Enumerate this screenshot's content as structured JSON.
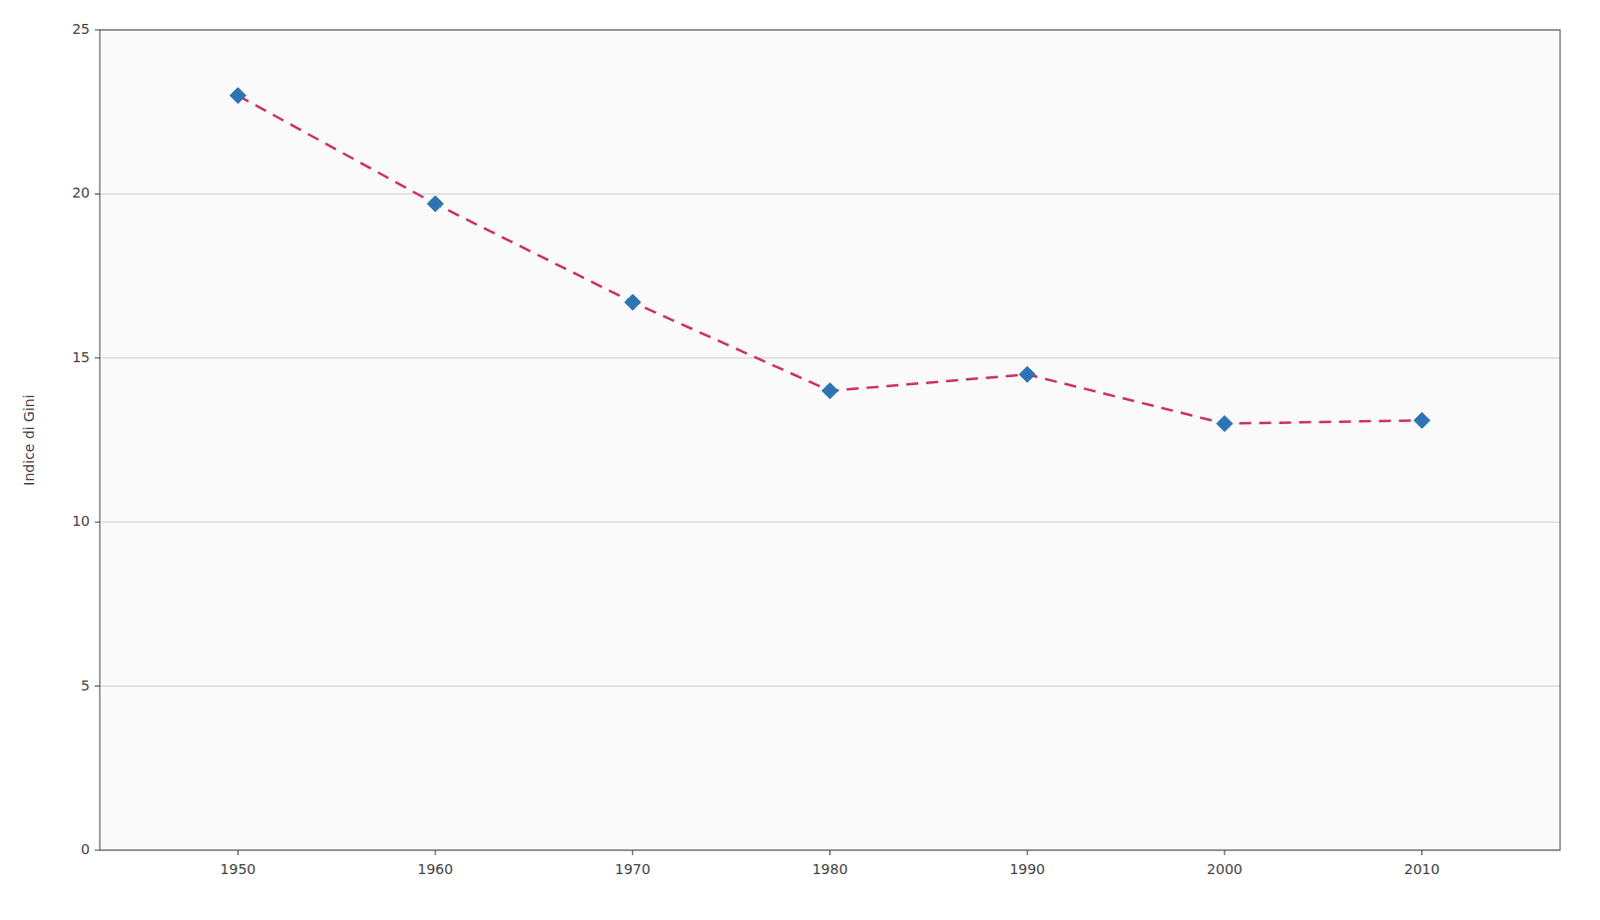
{
  "chart_data": {
    "type": "line",
    "ylabel": "Indice di Gini",
    "x": [
      1950,
      1960,
      1970,
      1980,
      1990,
      2000,
      2010
    ],
    "series": [
      {
        "type": "line",
        "color": "#cc3366",
        "line_style": "dashed",
        "values": [
          23.0,
          19.7,
          16.7,
          14.0,
          14.5,
          13.0,
          13.1
        ]
      },
      {
        "type": "scatter",
        "color": "#2e74b5",
        "marker": "diamond",
        "values": [
          23.0,
          19.7,
          16.7,
          14.0,
          14.5,
          13.0,
          13.1
        ]
      }
    ],
    "xlim": [
      1943,
      2017
    ],
    "xticks": [
      1950,
      1960,
      1970,
      1980,
      1990,
      2000,
      2010
    ],
    "ylim": [
      0,
      25
    ],
    "yticks": [
      0,
      5,
      10,
      15,
      20,
      25
    ],
    "grid": true
  }
}
